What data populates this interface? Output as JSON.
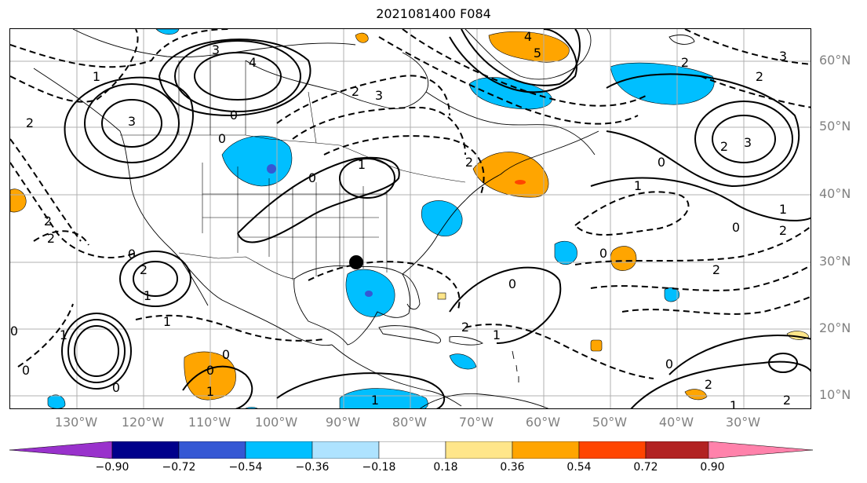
{
  "title": "2021081400 F084",
  "lon_labels": [
    "130°W",
    "120°W",
    "110°W",
    "100°W",
    "90°W",
    "80°W",
    "70°W",
    "60°W",
    "50°W",
    "40°W",
    "30°W"
  ],
  "lat_labels": [
    "60°N",
    "50°N",
    "40°N",
    "30°N",
    "20°N",
    "10°N"
  ],
  "colorbar": {
    "ticks": [
      "−0.90",
      "−0.72",
      "−0.54",
      "−0.36",
      "−0.18",
      "0.18",
      "0.36",
      "0.54",
      "0.72",
      "0.90"
    ],
    "colors": [
      "#9932cc",
      "#00008b",
      "#3558d4",
      "#00bfff",
      "#aee3ff",
      "#ffffff",
      "#ffe68a",
      "#ffa500",
      "#ff4500",
      "#b22222",
      "#ff82ab"
    ]
  },
  "contour_labels": {
    "zero": "0",
    "one": "1",
    "two": "2",
    "three": "3",
    "four": "4",
    "five": "5",
    "neg1": "1",
    "neg2": "2",
    "neg3": "3"
  },
  "marker": "storm-position"
}
